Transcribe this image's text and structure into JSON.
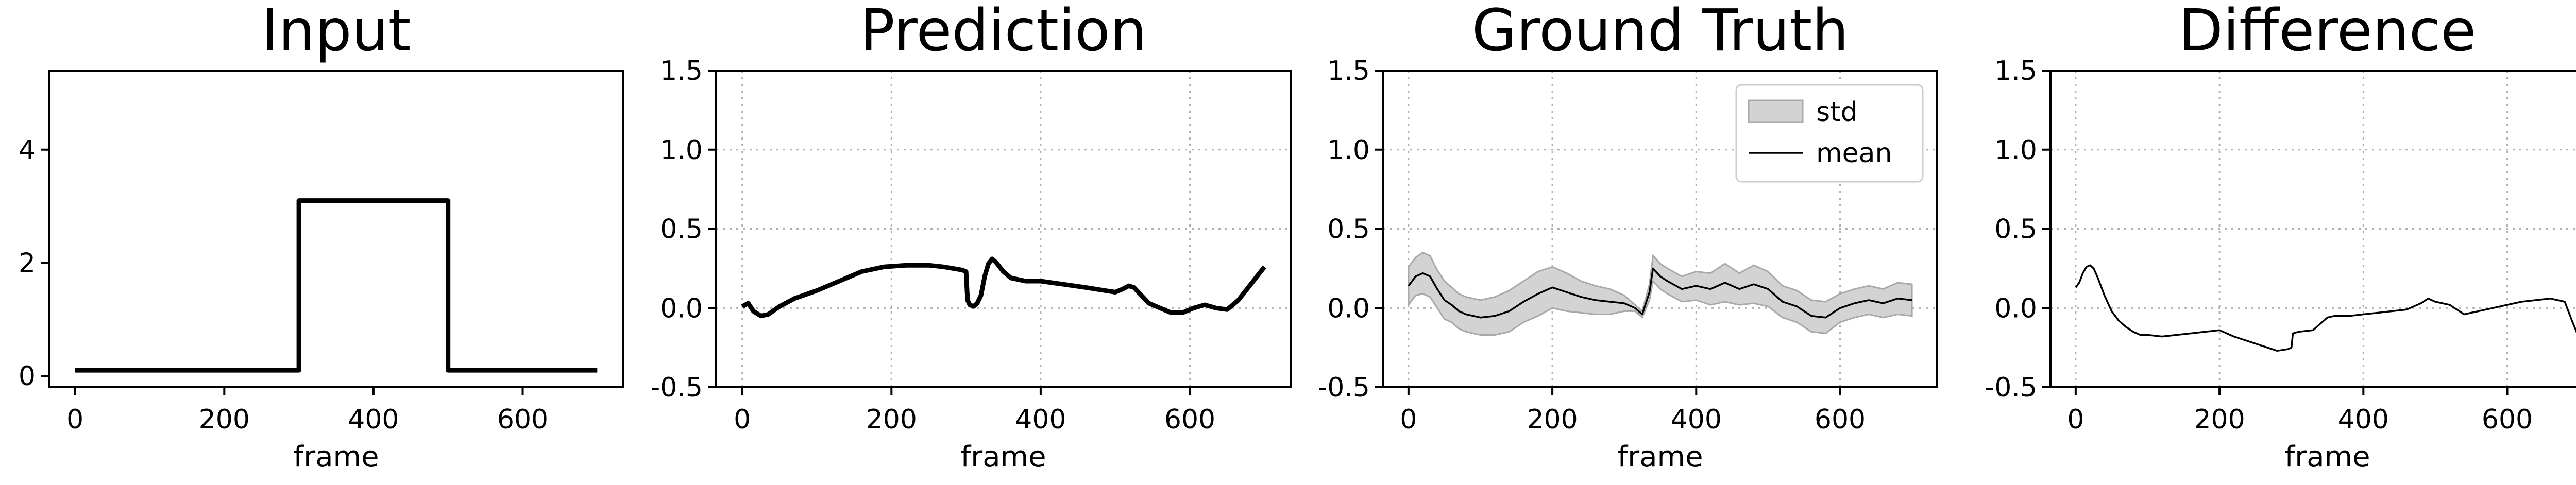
{
  "chart_data": [
    {
      "type": "line",
      "title": "Input",
      "xlabel": "frame",
      "ylabel": "",
      "xlim": [
        -35,
        735
      ],
      "ylim": [
        -0.2,
        5.4
      ],
      "xticks": [
        0,
        200,
        400,
        600
      ],
      "yticks": [
        0,
        2,
        4
      ],
      "grid": false,
      "series": [
        {
          "x": [
            0,
            300,
            300,
            500,
            500,
            700
          ],
          "y": [
            0.1,
            0.1,
            3.1,
            3.1,
            0.1,
            0.1
          ],
          "color": "#000000"
        }
      ]
    },
    {
      "type": "line",
      "title": "Prediction",
      "xlabel": "frame",
      "ylabel": "",
      "xlim": [
        -35,
        735
      ],
      "ylim": [
        -0.5,
        1.5
      ],
      "xticks": [
        0,
        200,
        400,
        600
      ],
      "yticks": [
        -0.5,
        0.0,
        0.5,
        1.0,
        1.5
      ],
      "grid": true,
      "series": [
        {
          "x": [
            0,
            8,
            15,
            25,
            35,
            50,
            70,
            100,
            130,
            160,
            190,
            220,
            250,
            270,
            295,
            300,
            302,
            305,
            310,
            315,
            320,
            325,
            330,
            335,
            340,
            350,
            360,
            380,
            400,
            430,
            460,
            500,
            510,
            518,
            525,
            535,
            545,
            560,
            575,
            590,
            605,
            620,
            635,
            650,
            665,
            680,
            700
          ],
          "y": [
            0.01,
            0.03,
            -0.02,
            -0.05,
            -0.04,
            0.01,
            0.06,
            0.11,
            0.17,
            0.23,
            0.26,
            0.27,
            0.27,
            0.26,
            0.24,
            0.23,
            0.05,
            0.02,
            0.01,
            0.03,
            0.08,
            0.2,
            0.28,
            0.31,
            0.29,
            0.23,
            0.19,
            0.17,
            0.17,
            0.15,
            0.13,
            0.1,
            0.12,
            0.14,
            0.13,
            0.08,
            0.03,
            0.0,
            -0.03,
            -0.03,
            0.0,
            0.02,
            0.0,
            -0.01,
            0.05,
            0.14,
            0.26
          ],
          "color": "#000000"
        }
      ]
    },
    {
      "type": "area",
      "title": "Ground Truth",
      "xlabel": "frame",
      "ylabel": "",
      "xlim": [
        -35,
        735
      ],
      "ylim": [
        -0.5,
        1.5
      ],
      "xticks": [
        0,
        200,
        400,
        600
      ],
      "yticks": [
        -0.5,
        0.0,
        0.5,
        1.0,
        1.5
      ],
      "grid": true,
      "legend": {
        "position": "top-right",
        "entries": [
          "std",
          "mean"
        ]
      },
      "series": [
        {
          "name": "mean",
          "x": [
            0,
            10,
            20,
            30,
            40,
            50,
            60,
            70,
            80,
            90,
            100,
            120,
            140,
            160,
            180,
            200,
            220,
            240,
            260,
            280,
            300,
            315,
            325,
            335,
            340,
            350,
            360,
            380,
            400,
            420,
            440,
            460,
            480,
            500,
            520,
            540,
            560,
            580,
            600,
            620,
            640,
            660,
            680,
            700
          ],
          "y": [
            0.14,
            0.2,
            0.22,
            0.2,
            0.12,
            0.05,
            0.02,
            -0.02,
            -0.04,
            -0.05,
            -0.06,
            -0.05,
            -0.02,
            0.04,
            0.09,
            0.13,
            0.1,
            0.07,
            0.05,
            0.04,
            0.03,
            0.0,
            -0.04,
            0.1,
            0.25,
            0.2,
            0.17,
            0.12,
            0.14,
            0.12,
            0.16,
            0.12,
            0.15,
            0.12,
            0.04,
            0.01,
            -0.05,
            -0.06,
            0.0,
            0.03,
            0.05,
            0.03,
            0.06,
            0.05
          ],
          "std": [
            0.12,
            0.12,
            0.13,
            0.13,
            0.12,
            0.12,
            0.11,
            0.11,
            0.11,
            0.11,
            0.11,
            0.12,
            0.13,
            0.13,
            0.14,
            0.13,
            0.12,
            0.1,
            0.09,
            0.08,
            0.05,
            0.02,
            0.02,
            0.05,
            0.08,
            0.08,
            0.08,
            0.08,
            0.09,
            0.1,
            0.12,
            0.1,
            0.12,
            0.11,
            0.1,
            0.1,
            0.1,
            0.1,
            0.09,
            0.09,
            0.09,
            0.09,
            0.1,
            0.1
          ],
          "color": "#000000",
          "fill_color": "#d3d3d3"
        }
      ]
    },
    {
      "type": "line",
      "title": "Difference",
      "xlabel": "frame",
      "ylabel": "",
      "xlim": [
        -35,
        735
      ],
      "ylim": [
        -0.5,
        1.5
      ],
      "xticks": [
        0,
        200,
        400,
        600
      ],
      "yticks": [
        -0.5,
        0.0,
        0.5,
        1.0,
        1.5
      ],
      "grid": true,
      "series": [
        {
          "x": [
            0,
            5,
            10,
            15,
            20,
            25,
            30,
            40,
            50,
            60,
            70,
            80,
            90,
            100,
            120,
            140,
            160,
            180,
            200,
            220,
            240,
            260,
            280,
            295,
            300,
            302,
            310,
            330,
            340,
            350,
            360,
            380,
            400,
            420,
            440,
            460,
            480,
            490,
            500,
            520,
            540,
            560,
            580,
            600,
            620,
            640,
            660,
            680,
            690,
            700
          ],
          "y": [
            0.13,
            0.16,
            0.22,
            0.26,
            0.27,
            0.25,
            0.2,
            0.08,
            -0.02,
            -0.08,
            -0.12,
            -0.15,
            -0.17,
            -0.17,
            -0.18,
            -0.17,
            -0.16,
            -0.15,
            -0.14,
            -0.18,
            -0.21,
            -0.24,
            -0.27,
            -0.26,
            -0.25,
            -0.16,
            -0.15,
            -0.14,
            -0.1,
            -0.06,
            -0.05,
            -0.05,
            -0.04,
            -0.03,
            -0.02,
            -0.01,
            0.03,
            0.06,
            0.04,
            0.02,
            -0.04,
            -0.02,
            0.0,
            0.02,
            0.04,
            0.05,
            0.06,
            0.04,
            -0.08,
            -0.19
          ],
          "color": "#000000"
        }
      ]
    }
  ]
}
